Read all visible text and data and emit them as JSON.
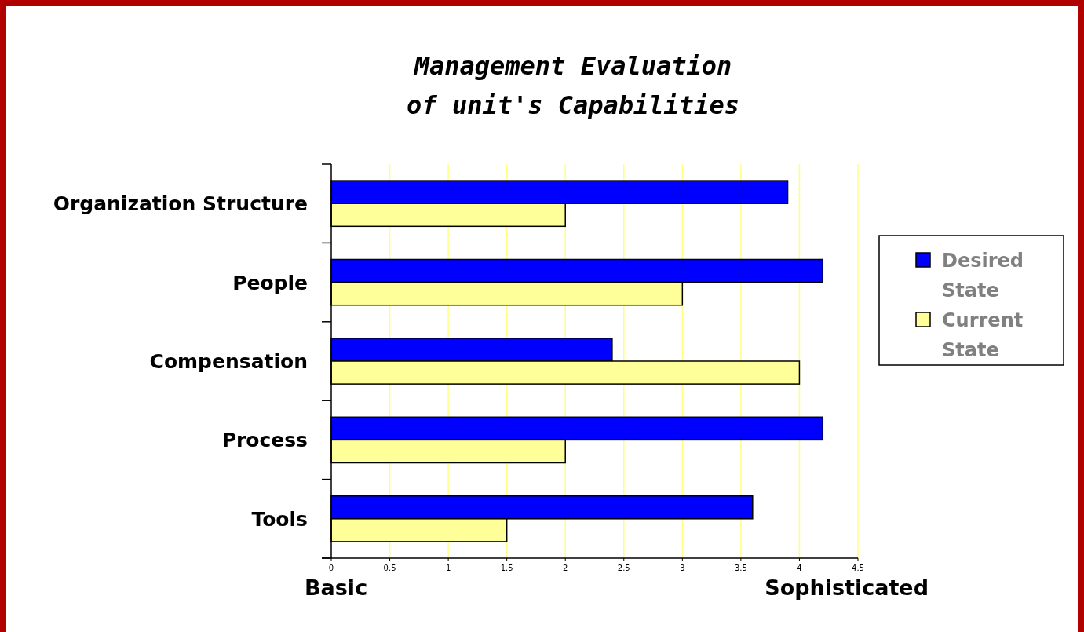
{
  "chart_data": {
    "type": "bar",
    "orientation": "horizontal",
    "title": "Management Evaluation\nof unit's Capabilities",
    "categories": [
      "Organization Structure",
      "People",
      "Compensation",
      "Process",
      "Tools"
    ],
    "series": [
      {
        "name": "Desired State",
        "color": "#0000ff",
        "values": [
          3.9,
          4.2,
          2.4,
          4.2,
          3.6
        ]
      },
      {
        "name": "Current State",
        "color": "#ffff99",
        "values": [
          2.0,
          3.0,
          4.0,
          2.0,
          1.5
        ]
      }
    ],
    "xlim": [
      0,
      4.5
    ],
    "xticks": [
      0,
      0.5,
      1,
      1.5,
      2,
      2.5,
      3,
      3.5,
      4,
      4.5
    ],
    "grid": "x",
    "legend": "right",
    "annotations": [
      "Basic",
      "Sophisticated"
    ]
  }
}
